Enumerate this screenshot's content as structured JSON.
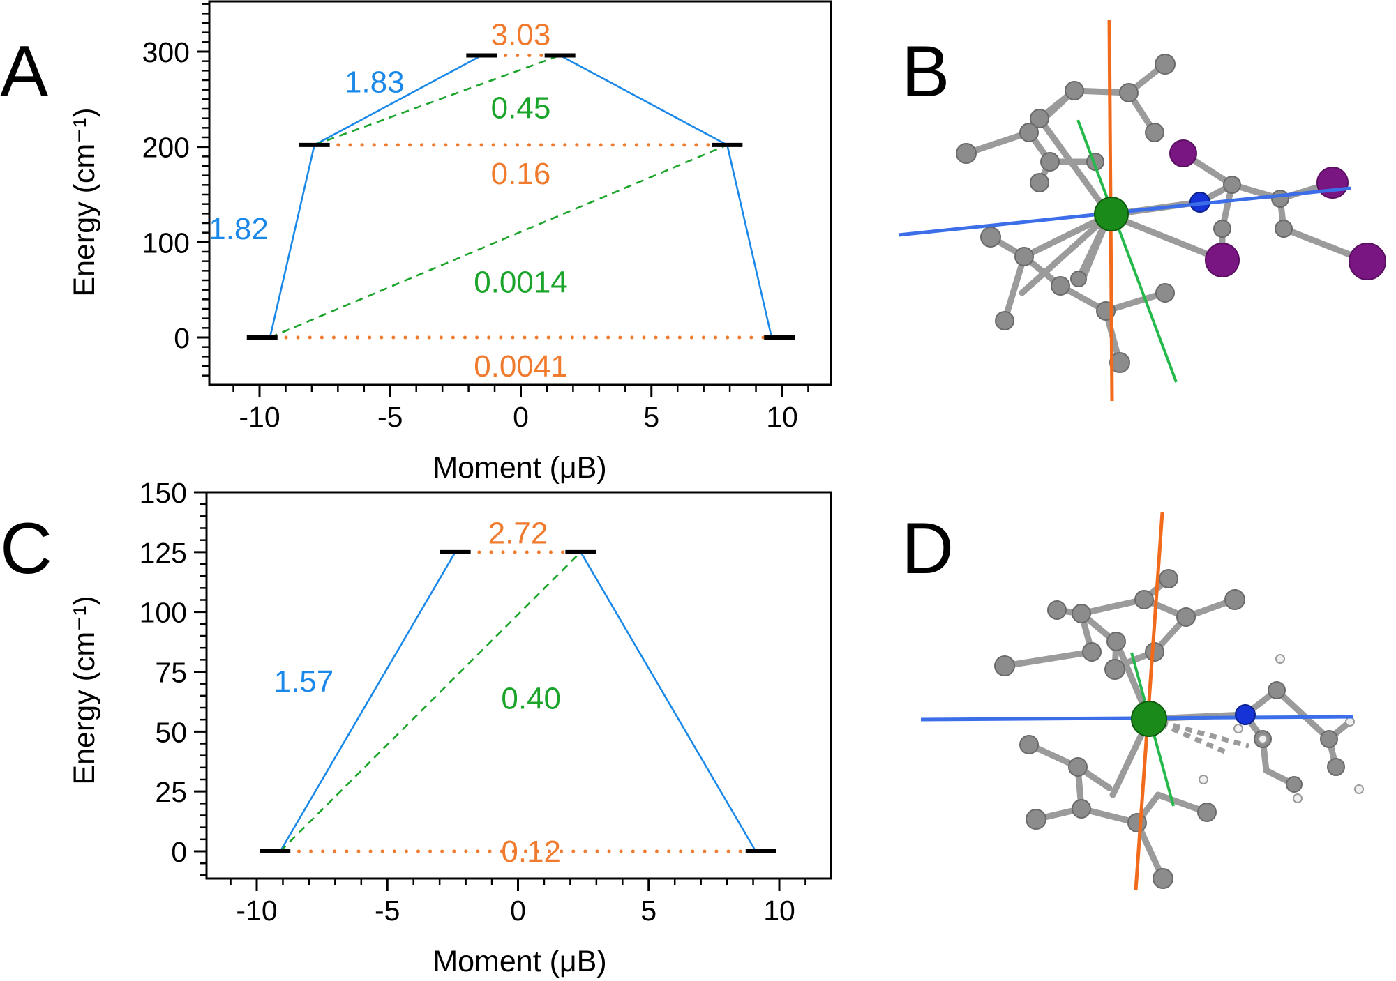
{
  "colors": {
    "blue_line": "#1a88e8",
    "green_line": "#1aa52a",
    "orange_line": "#f07b2e",
    "level": "#000000",
    "axis": "#000000",
    "mol_blue_axis": "#3b6ee8",
    "mol_orange_axis": "#f26a1b",
    "mol_green_axis": "#25b84a",
    "atom_carbon": "#8a8a8a",
    "atom_metal": "#1a8a1a",
    "atom_nitrogen": "#1633d8",
    "atom_iodine": "#7a1682",
    "atom_hydrogen": "#f0f0f0"
  },
  "panels": {
    "A": {
      "letter": "A"
    },
    "B": {
      "letter": "B"
    },
    "C": {
      "letter": "C"
    },
    "D": {
      "letter": "D"
    }
  },
  "chart_data": [
    {
      "panel": "A",
      "type": "line",
      "xlabel": "Moment (μB)",
      "ylabel": "Energy (cm⁻¹)",
      "xlim": [
        -12,
        12
      ],
      "ylim": [
        -50,
        350
      ],
      "xticks": [
        -10,
        -5,
        0,
        5,
        10
      ],
      "yticks": [
        0,
        100,
        200,
        300
      ],
      "levels": [
        {
          "moment": -9.9,
          "energy": 0
        },
        {
          "moment": 9.9,
          "energy": 0
        },
        {
          "moment": -7.9,
          "energy": 202
        },
        {
          "moment": 7.9,
          "energy": 202
        },
        {
          "moment": -1.5,
          "energy": 296
        },
        {
          "moment": 1.5,
          "energy": 296
        }
      ],
      "transitions": [
        {
          "kind": "blue",
          "style": "solid",
          "from": [
            -9.6,
            0
          ],
          "to": [
            -7.9,
            202
          ]
        },
        {
          "kind": "blue",
          "style": "solid",
          "from": [
            -7.9,
            202
          ],
          "to": [
            -1.5,
            296
          ]
        },
        {
          "kind": "blue",
          "style": "solid",
          "from": [
            1.5,
            296
          ],
          "to": [
            7.9,
            202
          ]
        },
        {
          "kind": "blue",
          "style": "solid",
          "from": [
            7.9,
            202
          ],
          "to": [
            9.6,
            0
          ]
        },
        {
          "kind": "green",
          "style": "dashed",
          "from": [
            -7.9,
            202
          ],
          "to": [
            1.5,
            296
          ]
        },
        {
          "kind": "green",
          "style": "dashed",
          "from": [
            -9.6,
            0
          ],
          "to": [
            7.9,
            202
          ]
        },
        {
          "kind": "orange",
          "style": "dotted",
          "from": [
            -1.5,
            296
          ],
          "to": [
            1.5,
            296
          ]
        },
        {
          "kind": "orange",
          "style": "dotted",
          "from": [
            -7.9,
            202
          ],
          "to": [
            7.9,
            202
          ]
        },
        {
          "kind": "orange",
          "style": "dotted",
          "from": [
            -9.9,
            0
          ],
          "to": [
            9.9,
            0
          ]
        }
      ],
      "annotations": [
        {
          "text": "3.03",
          "kind": "orange",
          "x": 0,
          "y": 318
        },
        {
          "text": "1.83",
          "kind": "blue",
          "x": -5.6,
          "y": 268
        },
        {
          "text": "0.45",
          "kind": "green",
          "x": 0,
          "y": 241
        },
        {
          "text": "0.16",
          "kind": "orange",
          "x": 0,
          "y": 172
        },
        {
          "text": "1.82",
          "kind": "blue",
          "x": -10.8,
          "y": 114
        },
        {
          "text": "0.0014",
          "kind": "green",
          "x": 0,
          "y": 58
        },
        {
          "text": "0.0041",
          "kind": "orange",
          "x": 0,
          "y": -30
        }
      ]
    },
    {
      "panel": "C",
      "type": "line",
      "xlabel": "Moment (μB)",
      "ylabel": "Energy (cm⁻¹)",
      "xlim": [
        -12,
        12
      ],
      "ylim": [
        -12,
        150
      ],
      "xticks": [
        -10,
        -5,
        0,
        5,
        10
      ],
      "yticks": [
        0,
        25,
        50,
        75,
        100,
        125,
        150
      ],
      "levels": [
        {
          "moment": -9.3,
          "energy": 0
        },
        {
          "moment": 9.3,
          "energy": 0
        },
        {
          "moment": -2.4,
          "energy": 125
        },
        {
          "moment": 2.4,
          "energy": 125
        }
      ],
      "transitions": [
        {
          "kind": "blue",
          "style": "solid",
          "from": [
            -9.1,
            0
          ],
          "to": [
            -2.4,
            125
          ]
        },
        {
          "kind": "blue",
          "style": "solid",
          "from": [
            2.4,
            125
          ],
          "to": [
            9.1,
            0
          ]
        },
        {
          "kind": "green",
          "style": "dashed",
          "from": [
            -9.1,
            0
          ],
          "to": [
            2.4,
            125
          ]
        },
        {
          "kind": "orange",
          "style": "dotted",
          "from": [
            -2.4,
            125
          ],
          "to": [
            2.4,
            125
          ]
        },
        {
          "kind": "orange",
          "style": "dotted",
          "from": [
            -9.3,
            0
          ],
          "to": [
            9.3,
            0
          ]
        }
      ],
      "annotations": [
        {
          "text": "2.72",
          "kind": "orange",
          "x": 0,
          "y": 133
        },
        {
          "text": "1.57",
          "kind": "blue",
          "x": -8.2,
          "y": 71
        },
        {
          "text": "0.40",
          "kind": "green",
          "x": 0.5,
          "y": 64
        },
        {
          "text": "0.12",
          "kind": "orange",
          "x": 0.5,
          "y": 0
        }
      ]
    }
  ]
}
